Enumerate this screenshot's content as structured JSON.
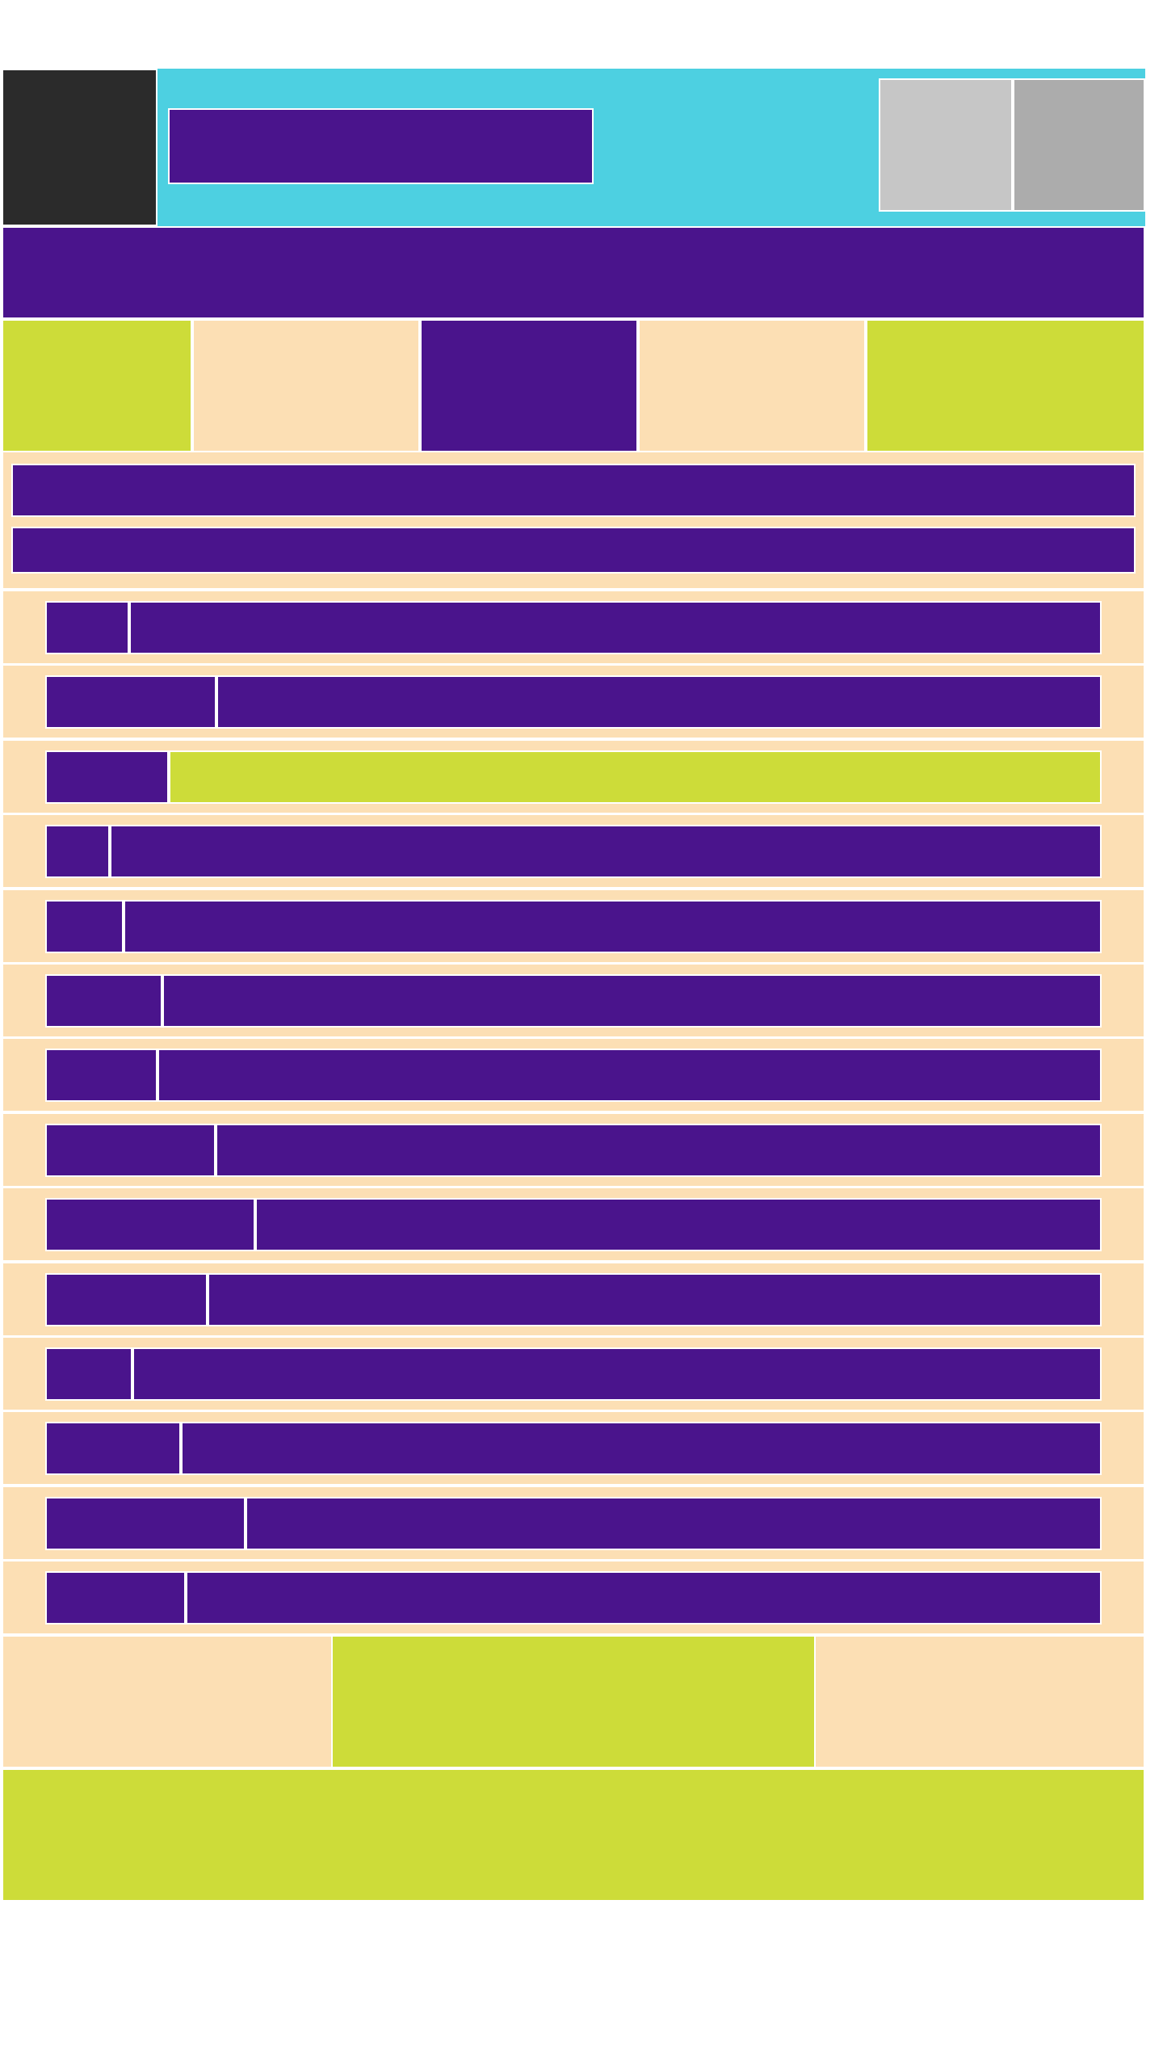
{
  "colors": {
    "cyan": "#4dd0e1",
    "dark": "#2b2b2b",
    "purple": "#4a148c",
    "peach": "#fcdfb4",
    "lime": "#cddc39",
    "grey_light": "#c6c6c6",
    "grey_mid": "#acacac",
    "border": "#ffffff"
  },
  "header": {
    "logo": "",
    "title": "",
    "icons": [
      "image-icon",
      "image-icon"
    ]
  },
  "banner": {
    "text": ""
  },
  "tabs": [
    {
      "label": "",
      "active": false
    },
    {
      "label": "",
      "active": false
    },
    {
      "label": "",
      "active": true
    },
    {
      "label": "",
      "active": false
    },
    {
      "label": "",
      "active": false
    }
  ],
  "section": {
    "title": "",
    "subtitle": ""
  },
  "rows": [
    {
      "label": "",
      "value": "",
      "highlighted": false
    },
    {
      "label": "",
      "value": "",
      "highlighted": false
    },
    {
      "label": "",
      "value": "",
      "highlighted": true
    },
    {
      "label": "",
      "value": "",
      "highlighted": false
    },
    {
      "label": "",
      "value": "",
      "highlighted": false
    },
    {
      "label": "",
      "value": "",
      "highlighted": false
    },
    {
      "label": "",
      "value": "",
      "highlighted": false
    },
    {
      "label": "",
      "value": "",
      "highlighted": false
    },
    {
      "label": "",
      "value": "",
      "highlighted": false
    },
    {
      "label": "",
      "value": "",
      "highlighted": false
    },
    {
      "label": "",
      "value": "",
      "highlighted": false
    },
    {
      "label": "",
      "value": "",
      "highlighted": false
    },
    {
      "label": "",
      "value": "",
      "highlighted": false
    },
    {
      "label": "",
      "value": "",
      "highlighted": false
    }
  ],
  "footer": {
    "left": "",
    "center": "",
    "right": "",
    "bar": ""
  }
}
